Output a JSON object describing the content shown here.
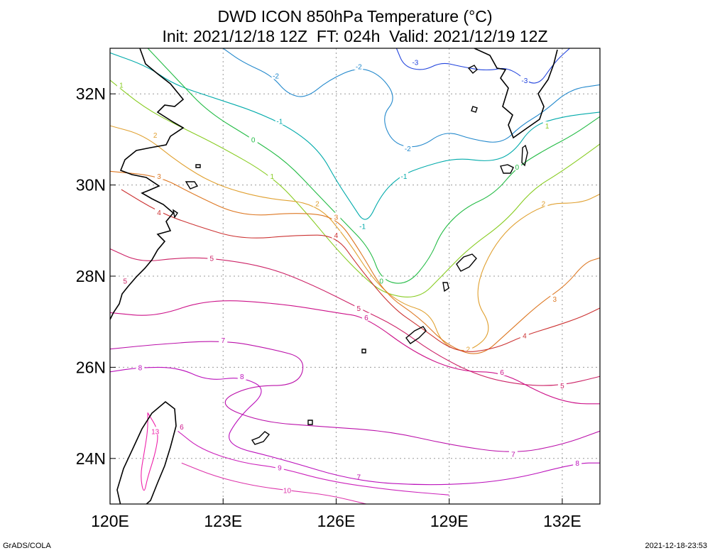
{
  "title_line1": "DWD ICON 850hPa Temperature (°C)",
  "title_line2": "Init: 2021/12/18 12Z  FT: 024h  Valid: 2021/12/19 12Z",
  "footer_left": "GrADS/COLA",
  "footer_right": "2021-12-18-23:53",
  "map": {
    "lon_range": [
      120,
      133
    ],
    "lat_range": [
      23,
      33
    ],
    "lon_ticks": [
      {
        "value": 120,
        "label": "120E"
      },
      {
        "value": 123,
        "label": "123E"
      },
      {
        "value": 126,
        "label": "126E"
      },
      {
        "value": 129,
        "label": "129E"
      },
      {
        "value": 132,
        "label": "132E"
      }
    ],
    "lat_ticks": [
      {
        "value": 24,
        "label": "24N"
      },
      {
        "value": 26,
        "label": "26N"
      },
      {
        "value": 28,
        "label": "28N"
      },
      {
        "value": 30,
        "label": "30N"
      },
      {
        "value": 32,
        "label": "32N"
      }
    ],
    "grid": "dotted"
  },
  "contours": [
    {
      "level": "-3",
      "color": "#2244dd",
      "labels": [
        [
          128.1,
          32.7
        ],
        [
          131.0,
          32.3
        ]
      ],
      "points": [
        [
          127.6,
          33.0
        ],
        [
          127.8,
          32.6
        ],
        [
          128.3,
          32.5
        ],
        [
          128.8,
          32.7
        ],
        [
          129.3,
          32.6
        ],
        [
          130.0,
          32.5
        ],
        [
          130.6,
          32.6
        ],
        [
          131.3,
          32.1
        ],
        [
          131.8,
          32.7
        ],
        [
          132.2,
          33.0
        ]
      ]
    },
    {
      "level": "-2",
      "color": "#2288cc",
      "labels": [
        [
          124.4,
          32.4
        ],
        [
          126.6,
          32.6
        ],
        [
          127.9,
          30.8
        ]
      ],
      "points": [
        [
          123.0,
          33.0
        ],
        [
          123.5,
          32.7
        ],
        [
          124.3,
          32.4
        ],
        [
          124.7,
          32.0
        ],
        [
          125.2,
          31.9
        ],
        [
          125.8,
          32.3
        ],
        [
          126.6,
          32.6
        ],
        [
          127.2,
          32.4
        ],
        [
          127.6,
          31.9
        ],
        [
          127.2,
          31.5
        ],
        [
          127.5,
          30.9
        ],
        [
          128.2,
          30.8
        ],
        [
          128.9,
          31.2
        ],
        [
          129.6,
          31.0
        ],
        [
          130.4,
          30.9
        ],
        [
          130.9,
          31.3
        ],
        [
          131.5,
          31.6
        ],
        [
          132.2,
          32.1
        ],
        [
          133.0,
          32.2
        ]
      ]
    },
    {
      "level": "-1",
      "color": "#00aaaa",
      "labels": [
        [
          124.5,
          31.4
        ],
        [
          127.8,
          30.2
        ],
        [
          126.7,
          29.1
        ]
      ],
      "points": [
        [
          120.0,
          32.9
        ],
        [
          121.0,
          32.6
        ],
        [
          121.7,
          32.2
        ],
        [
          122.8,
          31.9
        ],
        [
          123.9,
          31.6
        ],
        [
          124.9,
          31.2
        ],
        [
          125.6,
          30.7
        ],
        [
          126.0,
          30.1
        ],
        [
          126.4,
          29.6
        ],
        [
          126.8,
          29.1
        ],
        [
          127.2,
          29.8
        ],
        [
          127.7,
          30.2
        ],
        [
          128.3,
          30.4
        ],
        [
          129.2,
          30.6
        ],
        [
          130.1,
          30.5
        ],
        [
          130.7,
          30.7
        ],
        [
          131.2,
          31.3
        ],
        [
          132.0,
          31.5
        ],
        [
          133.0,
          31.6
        ]
      ]
    },
    {
      "level": "0",
      "color": "#22bb44",
      "labels": [
        [
          123.8,
          31.0
        ],
        [
          127.2,
          27.9
        ],
        [
          130.8,
          30.4
        ]
      ],
      "points": [
        [
          121.0,
          33.0
        ],
        [
          121.8,
          32.3
        ],
        [
          122.6,
          31.6
        ],
        [
          123.8,
          31.0
        ],
        [
          124.7,
          30.5
        ],
        [
          125.5,
          29.8
        ],
        [
          126.2,
          29.2
        ],
        [
          126.9,
          28.6
        ],
        [
          127.2,
          27.9
        ],
        [
          127.9,
          27.8
        ],
        [
          128.5,
          28.4
        ],
        [
          128.8,
          29.0
        ],
        [
          129.4,
          29.5
        ],
        [
          130.2,
          29.8
        ],
        [
          130.8,
          30.4
        ],
        [
          131.6,
          30.8
        ],
        [
          132.3,
          31.1
        ],
        [
          133.0,
          31.5
        ]
      ]
    },
    {
      "level": "1",
      "color": "#88cc22",
      "labels": [
        [
          120.3,
          32.2
        ],
        [
          124.3,
          30.2
        ],
        [
          131.6,
          31.3
        ]
      ],
      "points": [
        [
          120.0,
          32.3
        ],
        [
          120.9,
          31.7
        ],
        [
          121.8,
          31.3
        ],
        [
          122.8,
          30.9
        ],
        [
          124.3,
          30.2
        ],
        [
          125.2,
          29.4
        ],
        [
          126.0,
          28.6
        ],
        [
          126.7,
          28.0
        ],
        [
          127.3,
          27.6
        ],
        [
          128.2,
          27.5
        ],
        [
          128.8,
          28.0
        ],
        [
          129.5,
          28.6
        ],
        [
          130.5,
          29.2
        ],
        [
          131.2,
          29.9
        ],
        [
          132.0,
          30.3
        ],
        [
          133.0,
          30.9
        ]
      ]
    },
    {
      "level": "2",
      "color": "#e0a030",
      "labels": [
        [
          121.2,
          31.1
        ],
        [
          125.5,
          29.6
        ],
        [
          131.5,
          29.6
        ],
        [
          129.5,
          26.4
        ]
      ],
      "points": [
        [
          120.0,
          31.3
        ],
        [
          120.9,
          31.1
        ],
        [
          121.8,
          30.5
        ],
        [
          122.8,
          30.0
        ],
        [
          124.1,
          29.7
        ],
        [
          125.5,
          29.6
        ],
        [
          126.3,
          28.8
        ],
        [
          127.0,
          27.9
        ],
        [
          127.7,
          27.4
        ],
        [
          128.5,
          27.2
        ],
        [
          128.8,
          26.5
        ],
        [
          129.5,
          26.3
        ],
        [
          130.2,
          26.8
        ],
        [
          129.6,
          27.6
        ],
        [
          130.3,
          28.9
        ],
        [
          131.5,
          29.6
        ],
        [
          132.5,
          29.6
        ],
        [
          133.0,
          29.8
        ]
      ]
    },
    {
      "level": "3",
      "color": "#dd7722",
      "labels": [
        [
          121.3,
          30.2
        ],
        [
          126.0,
          29.3
        ],
        [
          131.8,
          27.5
        ]
      ],
      "points": [
        [
          120.0,
          30.3
        ],
        [
          121.3,
          30.2
        ],
        [
          122.2,
          29.8
        ],
        [
          123.5,
          29.3
        ],
        [
          125.0,
          29.4
        ],
        [
          126.0,
          29.3
        ],
        [
          126.6,
          28.6
        ],
        [
          127.3,
          27.6
        ],
        [
          128.2,
          27.1
        ],
        [
          128.9,
          26.5
        ],
        [
          129.8,
          26.2
        ],
        [
          130.6,
          26.8
        ],
        [
          131.4,
          27.4
        ],
        [
          132.1,
          27.8
        ],
        [
          132.6,
          28.3
        ],
        [
          133.0,
          28.4
        ]
      ]
    },
    {
      "level": "4",
      "color": "#cc3333",
      "labels": [
        [
          121.3,
          29.4
        ],
        [
          126.0,
          28.9
        ],
        [
          131.0,
          26.7
        ]
      ],
      "points": [
        [
          120.3,
          29.9
        ],
        [
          121.3,
          29.4
        ],
        [
          122.3,
          29.1
        ],
        [
          123.5,
          28.8
        ],
        [
          125.0,
          28.9
        ],
        [
          126.0,
          28.9
        ],
        [
          126.6,
          28.2
        ],
        [
          127.5,
          27.3
        ],
        [
          128.2,
          26.9
        ],
        [
          129.2,
          26.3
        ],
        [
          130.2,
          26.4
        ],
        [
          131.0,
          26.7
        ],
        [
          131.8,
          26.9
        ],
        [
          132.5,
          27.1
        ],
        [
          133.0,
          27.3
        ]
      ]
    },
    {
      "level": "5",
      "color": "#cc2266",
      "labels": [
        [
          120.4,
          27.9
        ],
        [
          122.7,
          28.4
        ],
        [
          126.6,
          27.3
        ],
        [
          132.0,
          25.6
        ]
      ],
      "points": [
        [
          120.0,
          28.6
        ],
        [
          120.8,
          28.3
        ],
        [
          121.8,
          28.4
        ],
        [
          122.7,
          28.4
        ],
        [
          124.2,
          28.2
        ],
        [
          125.4,
          27.8
        ],
        [
          126.6,
          27.3
        ],
        [
          127.6,
          26.9
        ],
        [
          128.6,
          26.3
        ],
        [
          129.8,
          25.8
        ],
        [
          131.0,
          25.6
        ],
        [
          132.0,
          25.6
        ],
        [
          133.0,
          25.8
        ]
      ]
    },
    {
      "level": "6",
      "color": "#cc1188",
      "labels": [
        [
          126.8,
          27.1
        ],
        [
          130.4,
          25.9
        ],
        [
          121.9,
          24.7
        ]
      ],
      "points": [
        [
          120.0,
          27.2
        ],
        [
          121.2,
          27.1
        ],
        [
          122.6,
          27.5
        ],
        [
          124.5,
          27.4
        ],
        [
          126.0,
          27.2
        ],
        [
          126.8,
          27.1
        ],
        [
          128.1,
          26.3
        ],
        [
          129.3,
          25.9
        ],
        [
          130.4,
          25.9
        ],
        [
          131.5,
          25.4
        ],
        [
          132.3,
          25.2
        ],
        [
          133.0,
          25.2
        ]
      ]
    },
    {
      "level": "7",
      "color": "#bb11aa",
      "labels": [
        [
          123.0,
          26.6
        ],
        [
          126.6,
          23.6
        ],
        [
          130.7,
          24.1
        ]
      ],
      "points": [
        [
          120.0,
          26.4
        ],
        [
          121.2,
          26.5
        ],
        [
          123.0,
          26.6
        ],
        [
          124.3,
          26.4
        ],
        [
          125.2,
          26.2
        ],
        [
          125.0,
          25.6
        ],
        [
          123.7,
          25.6
        ],
        [
          122.8,
          25.2
        ],
        [
          124.0,
          24.8
        ],
        [
          125.6,
          24.7
        ],
        [
          127.4,
          24.6
        ],
        [
          129.0,
          24.3
        ],
        [
          130.7,
          24.1
        ],
        [
          132.0,
          24.3
        ],
        [
          133.0,
          24.6
        ]
      ]
    },
    {
      "level": "8",
      "color": "#bb11bb",
      "labels": [
        [
          120.8,
          26.0
        ],
        [
          123.5,
          25.8
        ],
        [
          132.4,
          23.9
        ]
      ],
      "points": [
        [
          120.0,
          25.9
        ],
        [
          120.8,
          26.0
        ],
        [
          121.8,
          26.0
        ],
        [
          122.6,
          25.7
        ],
        [
          123.5,
          25.8
        ],
        [
          124.2,
          25.5
        ],
        [
          123.4,
          24.9
        ],
        [
          123.0,
          24.3
        ],
        [
          124.5,
          24.0
        ],
        [
          126.5,
          23.5
        ],
        [
          128.5,
          23.4
        ],
        [
          130.5,
          23.5
        ],
        [
          132.4,
          23.9
        ],
        [
          133.0,
          23.9
        ]
      ]
    },
    {
      "level": "9",
      "color": "#cc22bb",
      "labels": [
        [
          124.5,
          23.8
        ]
      ],
      "points": [
        [
          121.8,
          24.6
        ],
        [
          122.4,
          24.2
        ],
        [
          123.5,
          23.9
        ],
        [
          124.5,
          23.8
        ],
        [
          125.8,
          23.5
        ],
        [
          127.5,
          23.3
        ],
        [
          129.0,
          23.2
        ]
      ]
    },
    {
      "level": "10",
      "color": "#dd33aa",
      "labels": [
        [
          124.7,
          23.3
        ]
      ],
      "points": [
        [
          121.9,
          23.9
        ],
        [
          122.8,
          23.6
        ],
        [
          123.8,
          23.4
        ],
        [
          124.7,
          23.3
        ],
        [
          125.8,
          23.2
        ],
        [
          126.8,
          23.0
        ]
      ]
    },
    {
      "level": "13",
      "color": "#ee22aa",
      "labels": [
        [
          121.2,
          24.6
        ]
      ],
      "points": [
        [
          121.0,
          25.0
        ],
        [
          121.3,
          24.6
        ],
        [
          121.2,
          24.1
        ],
        [
          121.0,
          23.6
        ],
        [
          120.9,
          23.2
        ],
        [
          120.8,
          23.6
        ],
        [
          120.9,
          24.1
        ],
        [
          121.0,
          24.6
        ],
        [
          121.0,
          25.0
        ]
      ]
    }
  ]
}
